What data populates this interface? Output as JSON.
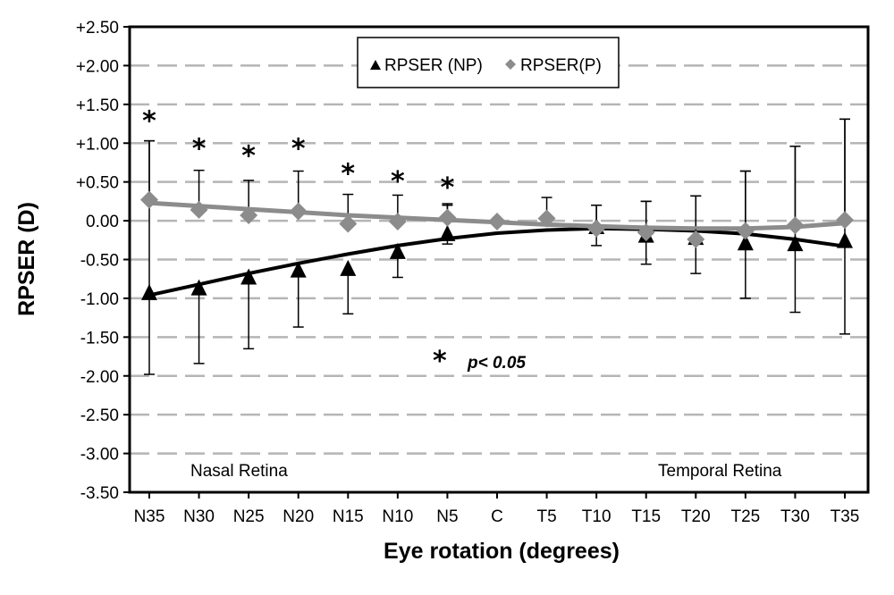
{
  "chart_data": {
    "type": "line",
    "title": "",
    "xlabel": "Eye rotation (degrees)",
    "ylabel": "RPSER (D)",
    "categories": [
      "N35",
      "N30",
      "N25",
      "N20",
      "N15",
      "N10",
      "N5",
      "C",
      "T5",
      "T10",
      "T15",
      "T20",
      "T25",
      "T30",
      "T35"
    ],
    "y_tick_labels": [
      "+2.50",
      "+2.00",
      "+1.50",
      "+1.00",
      "+0.50",
      "0.00",
      "-0.50",
      "-1.00",
      "-1.50",
      "-2.00",
      "-2.50",
      "-3.00",
      "-3.50"
    ],
    "ylim": [
      -3.5,
      2.5
    ],
    "grid": "horizontal dashed",
    "legend_position": "top-center",
    "series": [
      {
        "name": "RPSER (NP)",
        "marker": "triangle",
        "color": "#000000",
        "values": [
          -0.93,
          -0.87,
          -0.73,
          -0.64,
          -0.62,
          -0.4,
          -0.17,
          null,
          null,
          -0.08,
          -0.19,
          -0.22,
          -0.29,
          -0.3,
          -0.26
        ],
        "error_upper": [
          1.03,
          null,
          null,
          null,
          null,
          null,
          0.2,
          null,
          null,
          0.2,
          0.25,
          0.32,
          0.64,
          0.96,
          1.31
        ],
        "error_lower": [
          -1.98,
          -1.84,
          -1.65,
          -1.37,
          -1.2,
          -0.73,
          -0.3,
          null,
          null,
          -0.32,
          -0.56,
          -0.68,
          -1.0,
          -1.18,
          -1.46
        ],
        "trend": [
          -0.96,
          -0.82,
          -0.68,
          -0.55,
          -0.43,
          -0.32,
          -0.23,
          -0.16,
          -0.12,
          -0.1,
          -0.11,
          -0.13,
          -0.17,
          -0.24,
          -0.33
        ]
      },
      {
        "name": "RPSER(P)",
        "marker": "diamond",
        "color": "#8c8c8c",
        "values": [
          0.27,
          0.14,
          0.07,
          0.12,
          -0.04,
          -0.01,
          0.04,
          -0.01,
          0.03,
          -0.1,
          -0.15,
          -0.24,
          -0.13,
          -0.06,
          0.01
        ],
        "error_upper": [
          1.03,
          0.65,
          0.52,
          0.64,
          0.34,
          0.33,
          0.22,
          null,
          0.3,
          0.2,
          0.25,
          0.32,
          0.64,
          0.96,
          1.31
        ],
        "error_lower": [
          null,
          null,
          null,
          null,
          null,
          null,
          null,
          null,
          null,
          null,
          null,
          null,
          null,
          null,
          null
        ],
        "trend": [
          0.23,
          0.19,
          0.15,
          0.11,
          0.07,
          0.04,
          0.01,
          -0.02,
          -0.05,
          -0.07,
          -0.09,
          -0.1,
          -0.1,
          -0.08,
          -0.03
        ]
      }
    ],
    "significance": {
      "symbol": "*",
      "note": "p< 0.05",
      "categories": [
        "N35",
        "N30",
        "N25",
        "N20",
        "N15",
        "N10",
        "N5"
      ],
      "y_positions": [
        1.38,
        1.02,
        0.93,
        1.02,
        0.7,
        0.6,
        0.52
      ]
    },
    "region_labels": {
      "left": "Nasal Retina",
      "right": "Temporal Retina"
    }
  }
}
